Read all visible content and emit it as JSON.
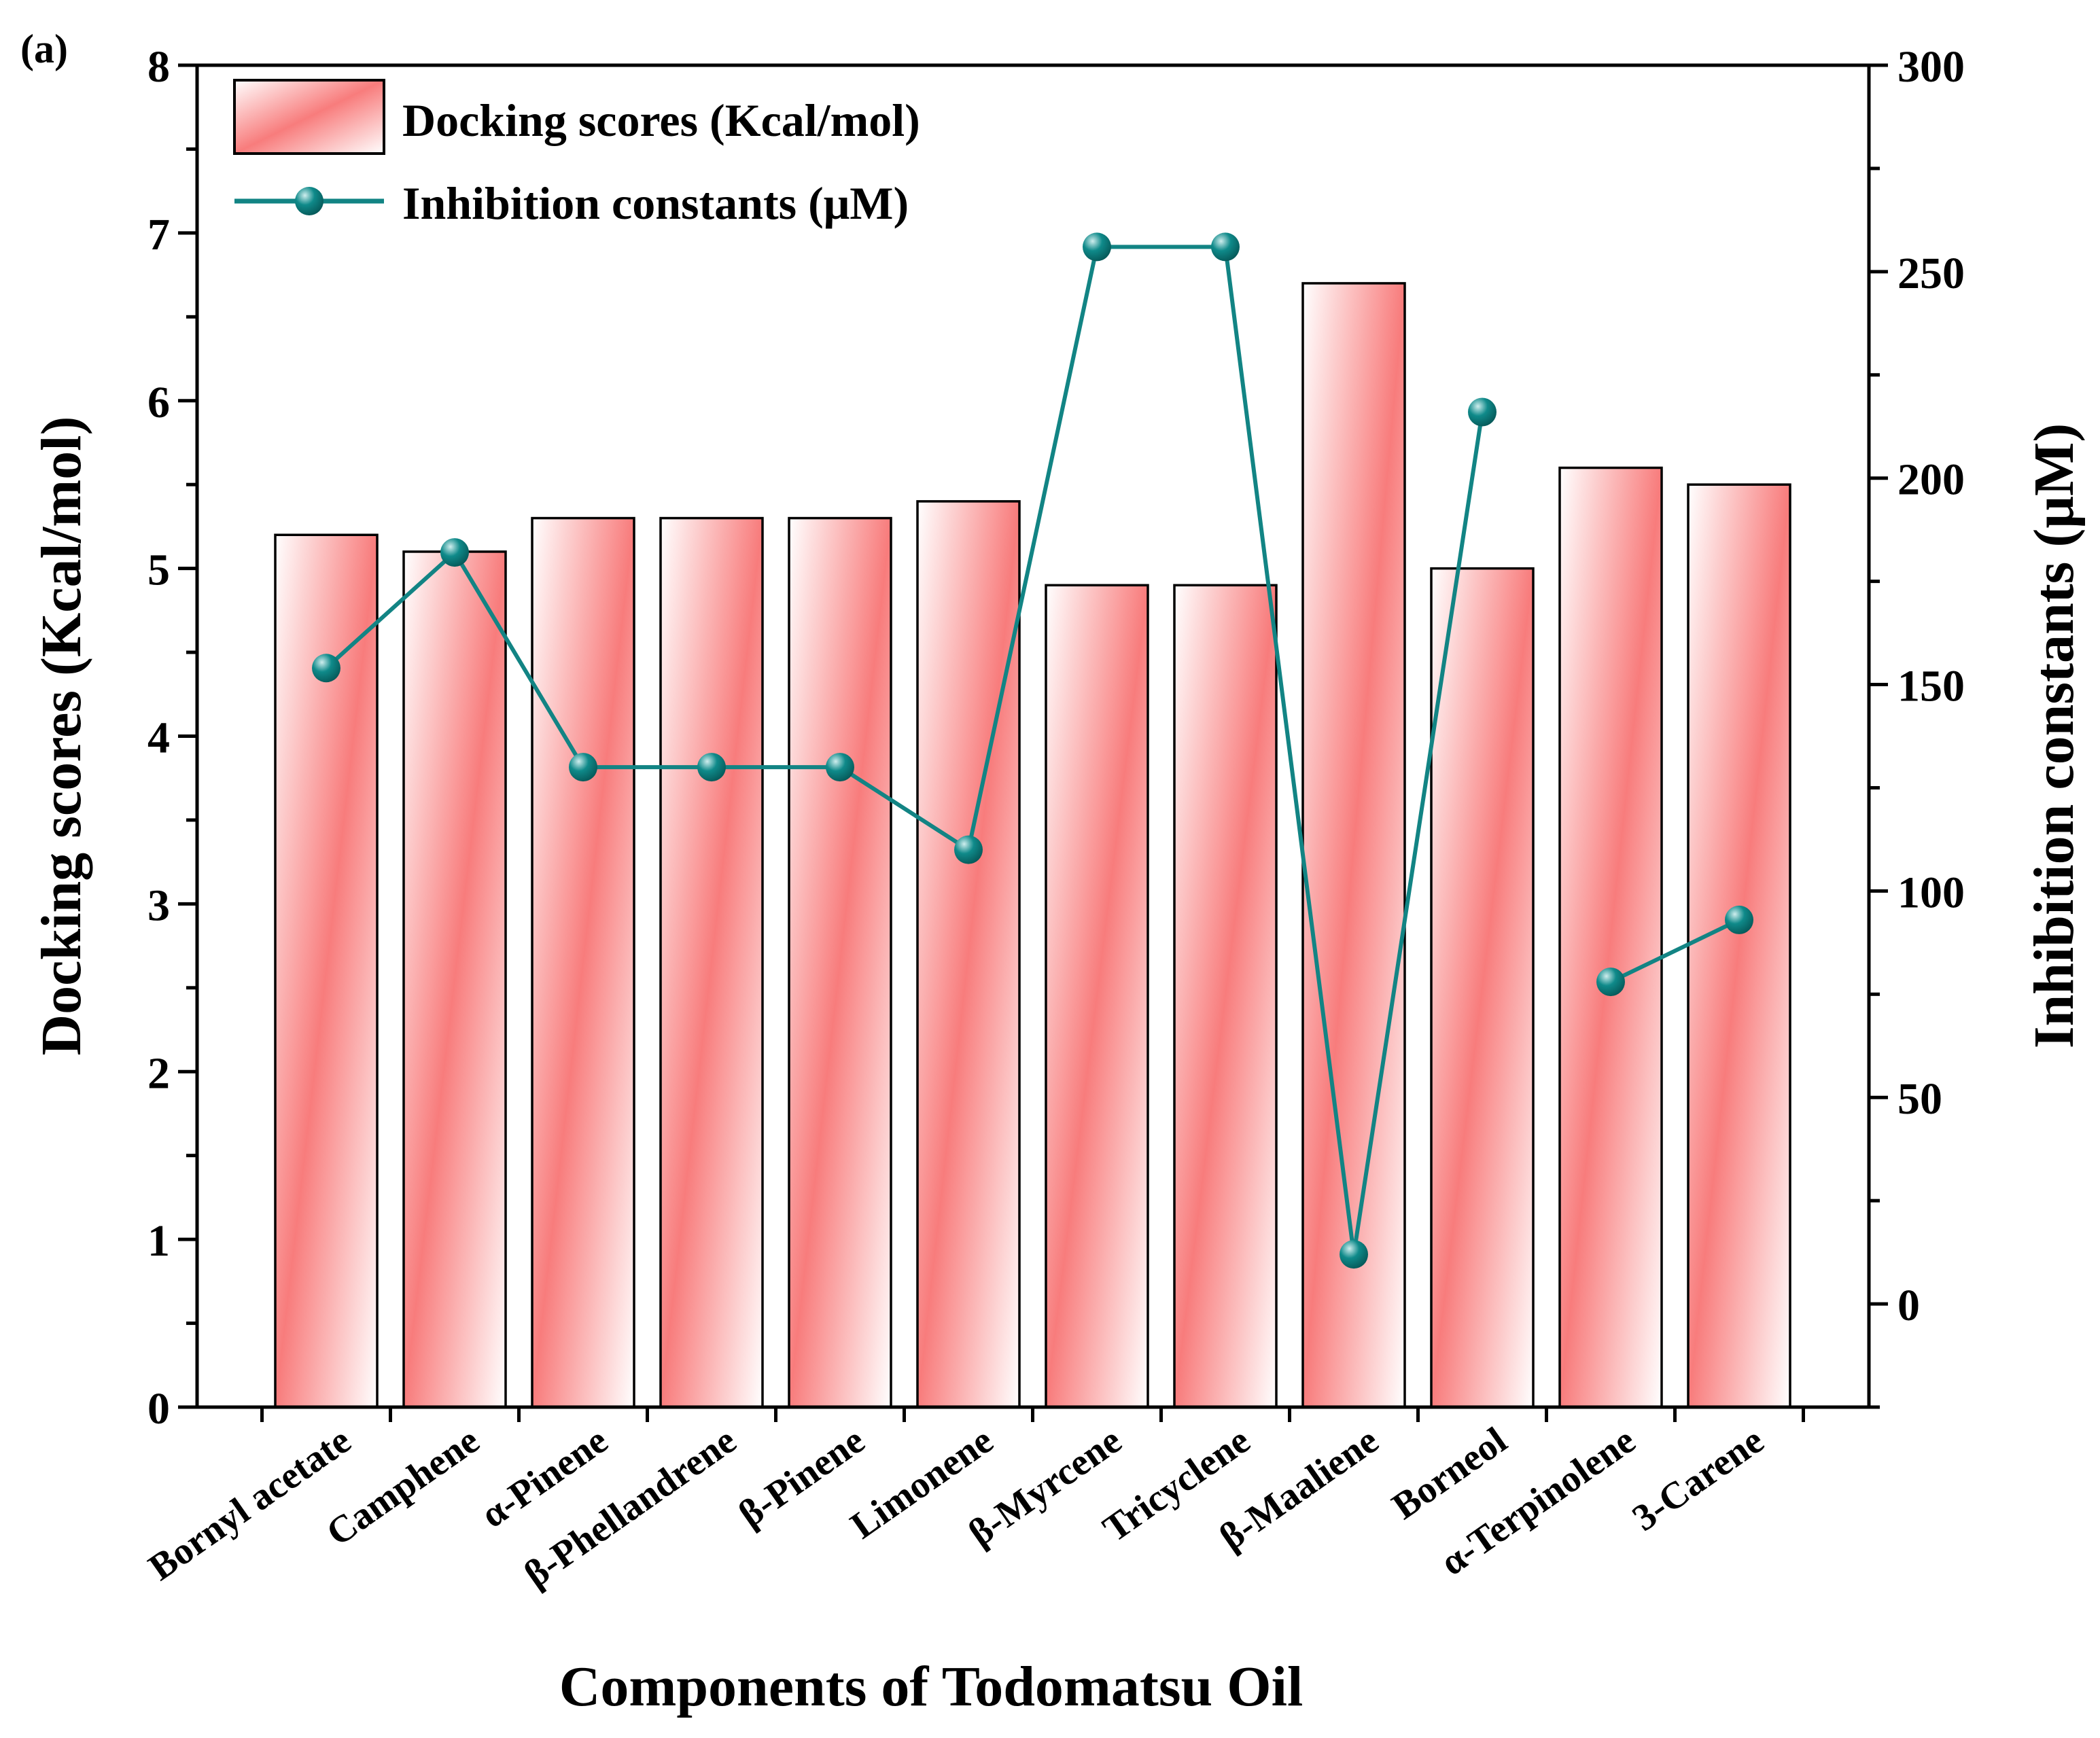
{
  "panel_label": "(a)",
  "colors": {
    "bar_edge": "#000000",
    "bar_fill_strong": "#f87c7c",
    "bar_fill_light": "#ffffff",
    "line": "#128484",
    "marker": "#0f8a8a",
    "marker_highlight": "#cfeeee"
  },
  "chart_data": {
    "type": "bar",
    "title": "",
    "xlabel": "Components of Todomatsu Oil",
    "ylabel": "Docking scores (Kcal/mol)",
    "y2label": "Inhibition constants (μM)",
    "ylim": [
      0,
      8
    ],
    "y2lim": [
      -25,
      300
    ],
    "yticks": [
      "0",
      "1",
      "2",
      "3",
      "4",
      "5",
      "6",
      "7",
      "8"
    ],
    "y2ticks": [
      "0",
      "50",
      "100",
      "150",
      "200",
      "250",
      "300"
    ],
    "legend_position": "top-left",
    "categories": [
      "Bornyl acetate",
      "Camphene",
      "α-Pinene",
      "β-Phellandrene",
      "β-Pinene",
      "Limonene",
      "β-Myrcene",
      "Tricyclene",
      "β-Maaliene",
      "Borneol",
      "α-Terpinolene",
      "3-Carene"
    ],
    "series": [
      {
        "name": "Docking scores (Kcal/mol)",
        "type": "bar",
        "axis": "left",
        "values": [
          5.2,
          5.1,
          5.3,
          5.3,
          5.3,
          5.4,
          4.9,
          4.9,
          6.7,
          5.0,
          5.6,
          5.5
        ]
      },
      {
        "name": "Inhibition constants (μM)",
        "type": "line",
        "axis": "right",
        "values": [
          154,
          182,
          130,
          130,
          130,
          110,
          256,
          256,
          12,
          216,
          78,
          93
        ]
      }
    ]
  }
}
